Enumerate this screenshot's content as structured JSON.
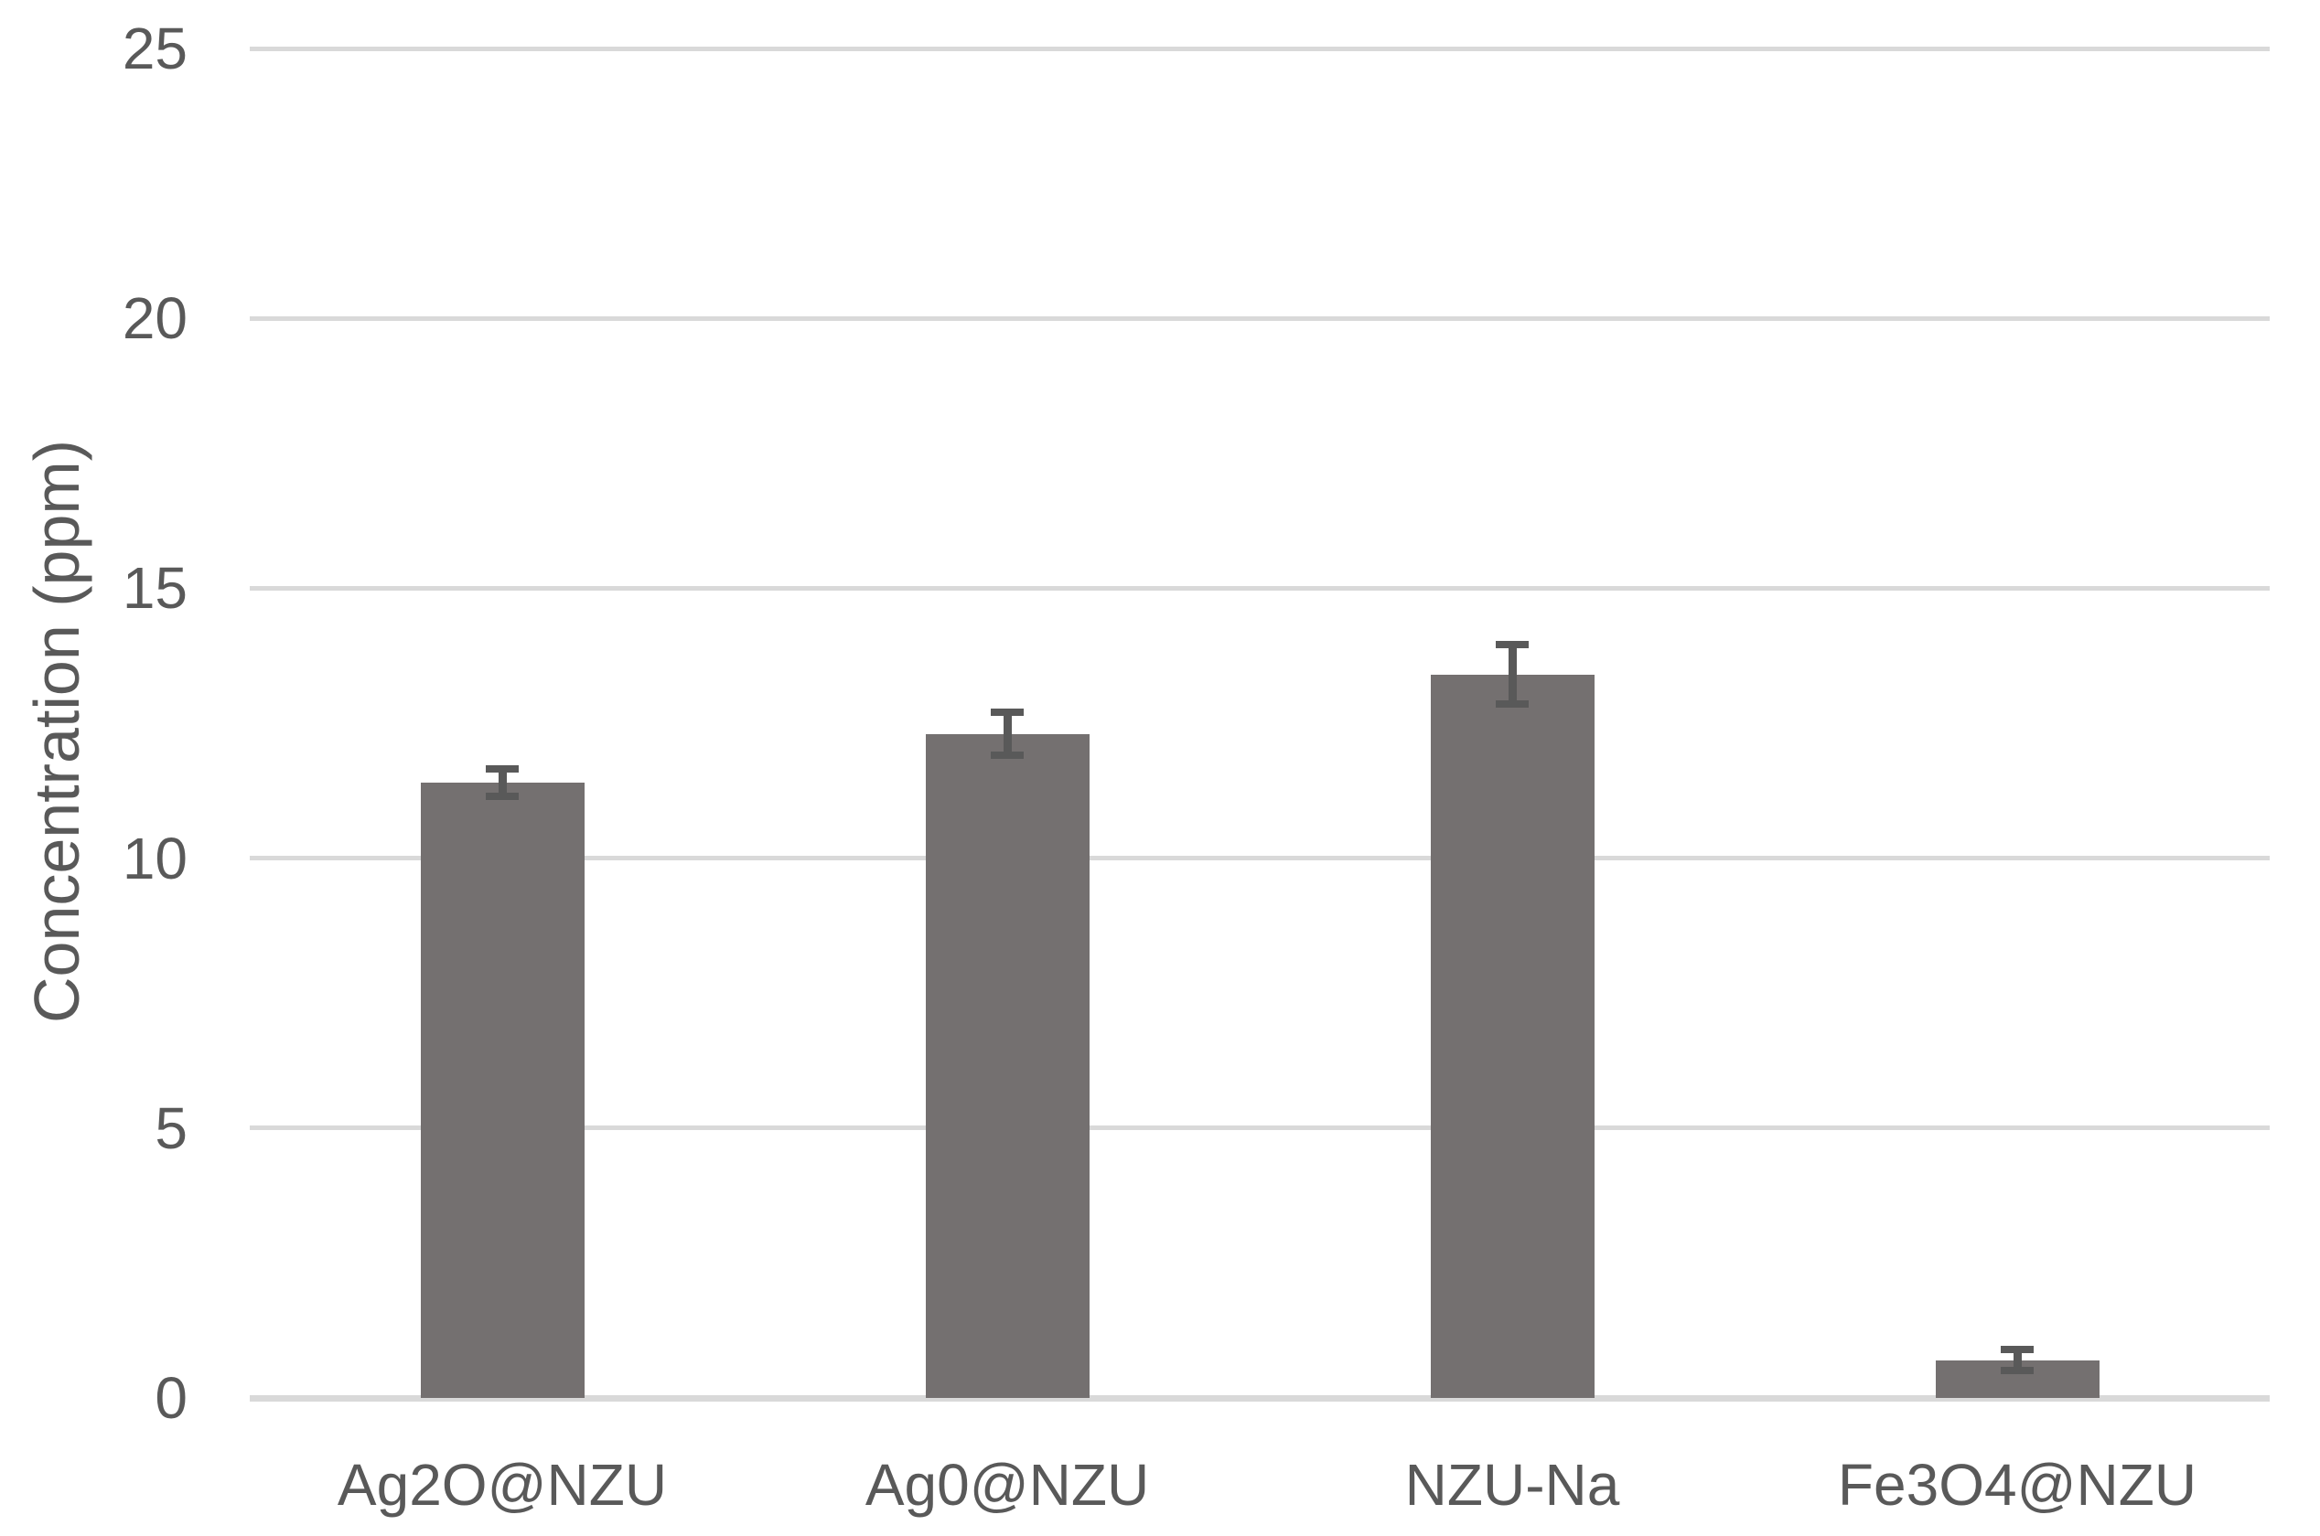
{
  "chart_data": {
    "type": "bar",
    "title": "",
    "xlabel": "",
    "ylabel": "Concentration (ppm)",
    "categories": [
      "Ag2O@NZU",
      "Ag0@NZU",
      "NZU-Na",
      "Fe3O4@NZU"
    ],
    "values": [
      11.4,
      12.3,
      13.4,
      0.7
    ],
    "error_bars": [
      0.25,
      0.4,
      0.55,
      0.2
    ],
    "yticks": [
      0,
      5,
      10,
      15,
      20,
      25
    ],
    "ylim": [
      0,
      25
    ],
    "grid": "horizontal gridlines on",
    "legend": "none",
    "colors": {
      "bar_fill": "#747070",
      "error_bar": "#595959",
      "gridline": "#D9D9D9",
      "axis_line": "#D9D9D9",
      "text": "#595959",
      "background": "#FFFFFF"
    }
  }
}
